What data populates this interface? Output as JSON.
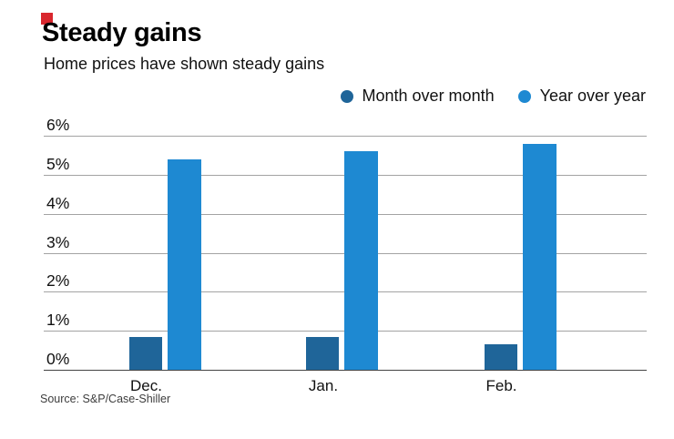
{
  "header": {
    "title": "Steady gains",
    "subtitle": "Home prices have shown steady gains"
  },
  "legend": [
    {
      "label": "Month over month",
      "color": "#1f6599"
    },
    {
      "label": "Year over year",
      "color": "#1e89d2"
    }
  ],
  "source": "Source: S&P/Case-Shiller",
  "colors": {
    "accent_red": "#d9272e",
    "grid": "#a3a3a3",
    "baseline": "#444444",
    "series_dark": "#1f6599",
    "series_light": "#1e89d2"
  },
  "chart_data": {
    "type": "bar",
    "title": "Steady gains",
    "subtitle": "Home prices have shown steady gains",
    "categories": [
      "Dec.",
      "Jan.",
      "Feb."
    ],
    "series": [
      {
        "name": "Month over month",
        "color": "#1f6599",
        "values": [
          0.85,
          0.85,
          0.65
        ]
      },
      {
        "name": "Year over year",
        "color": "#1e89d2",
        "values": [
          5.4,
          5.6,
          5.8
        ]
      }
    ],
    "xlabel": "",
    "ylabel": "",
    "ylim": [
      0,
      6
    ],
    "y_ticks": [
      "0%",
      "1%",
      "2%",
      "3%",
      "4%",
      "5%",
      "6%"
    ],
    "y_tick_values": [
      0,
      1,
      2,
      3,
      4,
      5,
      6
    ],
    "grid": true,
    "legend_position": "top-right",
    "source": "Source: S&P/Case-Shiller"
  }
}
